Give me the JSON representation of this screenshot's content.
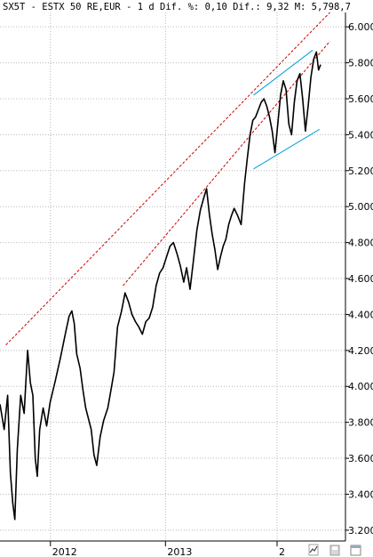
{
  "header": {
    "title": "SX5T - ESTX 50 RE,EUR -  1 d Dif. %: 0,10 Dif.: 9,32 M: 5,798,7"
  },
  "footer": {
    "icons": [
      "chart-type-icon",
      "save-icon",
      "window-icon"
    ]
  },
  "chart_data": {
    "type": "line",
    "title": "SX5T - ESTX 50 RE,EUR -  1 d Dif. %: 0,10 Dif.: 9,32 M: 5,798,7",
    "xlabel": "",
    "ylabel": "",
    "ylim": [
      3140,
      6080
    ],
    "xlim": [
      0,
      1
    ],
    "grid": true,
    "y_ticks": [
      3200,
      3400,
      3600,
      3800,
      4000,
      4200,
      4400,
      4600,
      4800,
      5000,
      5200,
      5400,
      5600,
      5800,
      6000
    ],
    "y_tick_labels": [
      "3.200",
      "3.400",
      "3.600",
      "3.800",
      "4.000",
      "4.200",
      "4.400",
      "4.600",
      "4.800",
      "5.000",
      "5.200",
      "5.400",
      "5.600",
      "5.800",
      "6.000"
    ],
    "x_ticks": [
      {
        "x": 0.146,
        "label": "2012"
      },
      {
        "x": 0.479,
        "label": "2013"
      },
      {
        "x": 0.802,
        "label": "2"
      }
    ],
    "series": [
      {
        "color": "#000000",
        "points": [
          [
            0.0,
            3900
          ],
          [
            0.012,
            3760
          ],
          [
            0.022,
            3950
          ],
          [
            0.03,
            3520
          ],
          [
            0.037,
            3350
          ],
          [
            0.043,
            3260
          ],
          [
            0.05,
            3650
          ],
          [
            0.06,
            3950
          ],
          [
            0.07,
            3850
          ],
          [
            0.08,
            4200
          ],
          [
            0.088,
            4020
          ],
          [
            0.095,
            3950
          ],
          [
            0.102,
            3600
          ],
          [
            0.108,
            3500
          ],
          [
            0.115,
            3760
          ],
          [
            0.125,
            3880
          ],
          [
            0.135,
            3780
          ],
          [
            0.145,
            3910
          ],
          [
            0.16,
            4030
          ],
          [
            0.175,
            4160
          ],
          [
            0.19,
            4300
          ],
          [
            0.2,
            4390
          ],
          [
            0.208,
            4420
          ],
          [
            0.215,
            4350
          ],
          [
            0.222,
            4180
          ],
          [
            0.232,
            4100
          ],
          [
            0.24,
            3980
          ],
          [
            0.248,
            3880
          ],
          [
            0.256,
            3820
          ],
          [
            0.264,
            3760
          ],
          [
            0.272,
            3620
          ],
          [
            0.28,
            3560
          ],
          [
            0.29,
            3720
          ],
          [
            0.3,
            3810
          ],
          [
            0.312,
            3880
          ],
          [
            0.322,
            3990
          ],
          [
            0.33,
            4080
          ],
          [
            0.34,
            4330
          ],
          [
            0.352,
            4420
          ],
          [
            0.362,
            4520
          ],
          [
            0.372,
            4470
          ],
          [
            0.382,
            4400
          ],
          [
            0.392,
            4360
          ],
          [
            0.402,
            4330
          ],
          [
            0.412,
            4290
          ],
          [
            0.422,
            4360
          ],
          [
            0.432,
            4380
          ],
          [
            0.442,
            4440
          ],
          [
            0.452,
            4560
          ],
          [
            0.462,
            4630
          ],
          [
            0.472,
            4660
          ],
          [
            0.482,
            4720
          ],
          [
            0.492,
            4780
          ],
          [
            0.502,
            4800
          ],
          [
            0.512,
            4740
          ],
          [
            0.522,
            4670
          ],
          [
            0.532,
            4580
          ],
          [
            0.54,
            4660
          ],
          [
            0.55,
            4540
          ],
          [
            0.56,
            4700
          ],
          [
            0.57,
            4870
          ],
          [
            0.58,
            4980
          ],
          [
            0.59,
            5050
          ],
          [
            0.598,
            5100
          ],
          [
            0.606,
            4960
          ],
          [
            0.614,
            4850
          ],
          [
            0.622,
            4760
          ],
          [
            0.63,
            4650
          ],
          [
            0.638,
            4720
          ],
          [
            0.646,
            4780
          ],
          [
            0.654,
            4820
          ],
          [
            0.662,
            4900
          ],
          [
            0.67,
            4950
          ],
          [
            0.678,
            4990
          ],
          [
            0.688,
            4950
          ],
          [
            0.698,
            4900
          ],
          [
            0.708,
            5130
          ],
          [
            0.716,
            5270
          ],
          [
            0.724,
            5400
          ],
          [
            0.732,
            5480
          ],
          [
            0.74,
            5500
          ],
          [
            0.748,
            5540
          ],
          [
            0.756,
            5580
          ],
          [
            0.764,
            5600
          ],
          [
            0.772,
            5560
          ],
          [
            0.78,
            5500
          ],
          [
            0.788,
            5420
          ],
          [
            0.796,
            5300
          ],
          [
            0.804,
            5460
          ],
          [
            0.812,
            5620
          ],
          [
            0.82,
            5700
          ],
          [
            0.828,
            5650
          ],
          [
            0.836,
            5460
          ],
          [
            0.844,
            5400
          ],
          [
            0.852,
            5580
          ],
          [
            0.86,
            5700
          ],
          [
            0.868,
            5740
          ],
          [
            0.876,
            5600
          ],
          [
            0.884,
            5420
          ],
          [
            0.892,
            5560
          ],
          [
            0.9,
            5720
          ],
          [
            0.908,
            5820
          ],
          [
            0.916,
            5860
          ],
          [
            0.922,
            5760
          ],
          [
            0.928,
            5790
          ]
        ]
      }
    ],
    "trendlines": [
      {
        "color": "#cc0000",
        "style": "dashed",
        "points": [
          [
            0.017,
            4230
          ],
          [
            0.955,
            6080
          ]
        ]
      },
      {
        "color": "#cc0000",
        "style": "dashed",
        "points": [
          [
            0.356,
            4560
          ],
          [
            0.955,
            5920
          ]
        ]
      },
      {
        "color": "#00a0e0",
        "style": "solid",
        "points": [
          [
            0.734,
            5620
          ],
          [
            0.905,
            5870
          ]
        ]
      },
      {
        "color": "#00a0e0",
        "style": "solid",
        "points": [
          [
            0.734,
            5210
          ],
          [
            0.925,
            5430
          ]
        ]
      }
    ]
  }
}
